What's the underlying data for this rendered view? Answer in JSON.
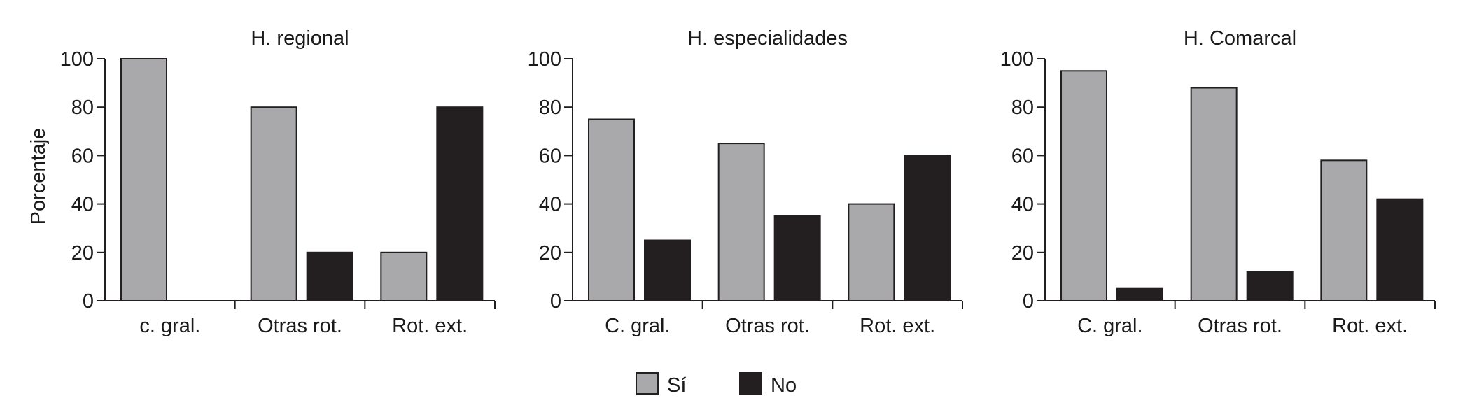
{
  "figure": {
    "ylabel": "Porcentaje",
    "legend": {
      "position": "bottom-center",
      "items": [
        {
          "label": "Sí",
          "color": "#a9a9ac"
        },
        {
          "label": "No",
          "color": "#231f20"
        }
      ]
    }
  },
  "chart_data": [
    {
      "type": "bar",
      "title": "H. regional",
      "categories": [
        "c. gral.",
        "Otras rot.",
        "Rot. ext."
      ],
      "ylim": [
        0,
        100
      ],
      "yticks": [
        0,
        20,
        40,
        60,
        80,
        100
      ],
      "grid": false,
      "series": [
        {
          "name": "Sí",
          "values": [
            100,
            80,
            20
          ]
        },
        {
          "name": "No",
          "values": [
            0,
            20,
            80
          ]
        }
      ]
    },
    {
      "type": "bar",
      "title": "H. especialidades",
      "categories": [
        "C. gral.",
        "Otras rot.",
        "Rot. ext."
      ],
      "ylim": [
        0,
        100
      ],
      "yticks": [
        0,
        20,
        40,
        60,
        80,
        100
      ],
      "grid": false,
      "series": [
        {
          "name": "Sí",
          "values": [
            75,
            65,
            40
          ]
        },
        {
          "name": "No",
          "values": [
            25,
            35,
            60
          ]
        }
      ]
    },
    {
      "type": "bar",
      "title": "H. Comarcal",
      "categories": [
        "C. gral.",
        "Otras rot.",
        "Rot. ext."
      ],
      "ylim": [
        0,
        100
      ],
      "yticks": [
        0,
        20,
        40,
        60,
        80,
        100
      ],
      "grid": false,
      "series": [
        {
          "name": "Sí",
          "values": [
            95,
            88,
            58
          ]
        },
        {
          "name": "No",
          "values": [
            5,
            12,
            42
          ]
        }
      ]
    }
  ]
}
